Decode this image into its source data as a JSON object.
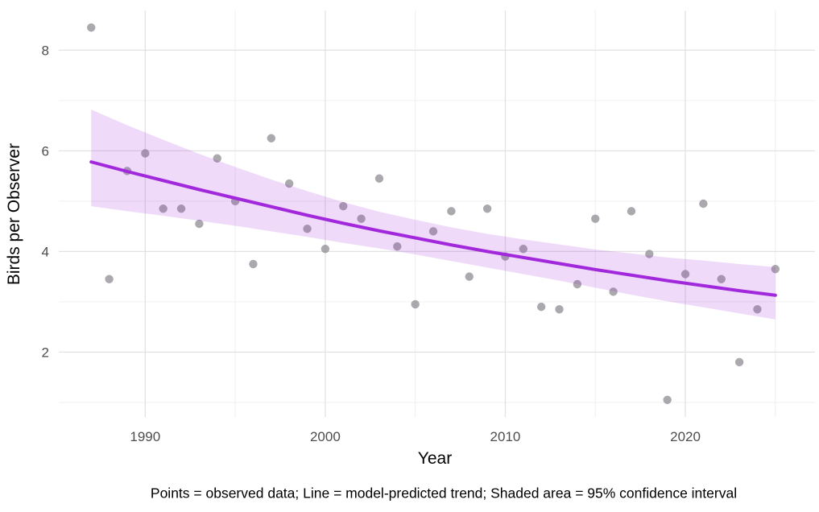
{
  "chart": {
    "y_axis_title": "Birds per Observer",
    "x_axis_title": "Year",
    "caption": "Points = observed data; Line = model-predicted trend; Shaded area = 95% confidence interval"
  },
  "colors": {
    "background": "#ffffff",
    "trend_line": "#a228dc",
    "ribbon_fill": "#a228dc",
    "ribbon_opacity": 0.17,
    "point_fill": "#8f8c92",
    "point_opacity": 0.75,
    "grid_major": "#e2e2e2",
    "grid_minor": "#f0f0f0",
    "tick_label": "#4d4d4d",
    "axis_title": "#000000"
  },
  "chart_data": {
    "type": "scatter",
    "title": "",
    "xlabel": "Year",
    "ylabel": "Birds per Observer",
    "xlim": [
      1985.2,
      2027.2
    ],
    "ylim": [
      0.71,
      8.79
    ],
    "x_ticks_major": [
      1990,
      2000,
      2010,
      2020
    ],
    "x_ticks_minor": [
      1995,
      2005,
      2015,
      2025
    ],
    "y_ticks_major": [
      2,
      4,
      6,
      8
    ],
    "y_ticks_minor": [
      1,
      3,
      5,
      7
    ],
    "grid": "major+minor",
    "legend": "none",
    "ci_level": "95%",
    "points": {
      "years": [
        1987,
        1988,
        1989,
        1990,
        1991,
        1992,
        1993,
        1994,
        1995,
        1996,
        1997,
        1998,
        1999,
        2000,
        2001,
        2002,
        2003,
        2004,
        2005,
        2006,
        2007,
        2008,
        2009,
        2010,
        2011,
        2012,
        2013,
        2014,
        2015,
        2016,
        2017,
        2018,
        2019,
        2020,
        2021,
        2022,
        2023,
        2024,
        2025
      ],
      "values": [
        8.45,
        3.45,
        5.6,
        5.95,
        4.85,
        4.85,
        4.55,
        5.85,
        5.0,
        3.75,
        6.25,
        5.35,
        4.45,
        4.05,
        4.9,
        4.65,
        5.45,
        4.1,
        2.95,
        4.4,
        4.8,
        3.5,
        4.85,
        3.9,
        4.05,
        2.9,
        2.85,
        3.35,
        4.65,
        3.2,
        4.8,
        3.95,
        1.05,
        3.55,
        4.95,
        3.45,
        1.8,
        2.85,
        3.65
      ]
    },
    "trend": {
      "years": [
        1987,
        1989,
        1991,
        1993,
        1995,
        1997,
        1999,
        2001,
        2003,
        2005,
        2007,
        2009,
        2011,
        2013,
        2015,
        2017,
        2019,
        2021,
        2023,
        2025
      ],
      "fit": [
        5.78,
        5.59,
        5.41,
        5.23,
        5.06,
        4.89,
        4.72,
        4.56,
        4.41,
        4.27,
        4.13,
        4.0,
        3.88,
        3.76,
        3.64,
        3.53,
        3.42,
        3.32,
        3.22,
        3.13
      ],
      "lower": [
        4.9,
        4.8,
        4.71,
        4.61,
        4.51,
        4.4,
        4.29,
        4.17,
        4.06,
        3.94,
        3.81,
        3.68,
        3.55,
        3.42,
        3.28,
        3.14,
        3.01,
        2.89,
        2.77,
        2.65
      ],
      "upper": [
        6.82,
        6.51,
        6.22,
        5.94,
        5.68,
        5.43,
        5.2,
        4.98,
        4.79,
        4.63,
        4.48,
        4.35,
        4.24,
        4.14,
        4.04,
        3.96,
        3.88,
        3.82,
        3.75,
        3.69
      ]
    }
  }
}
